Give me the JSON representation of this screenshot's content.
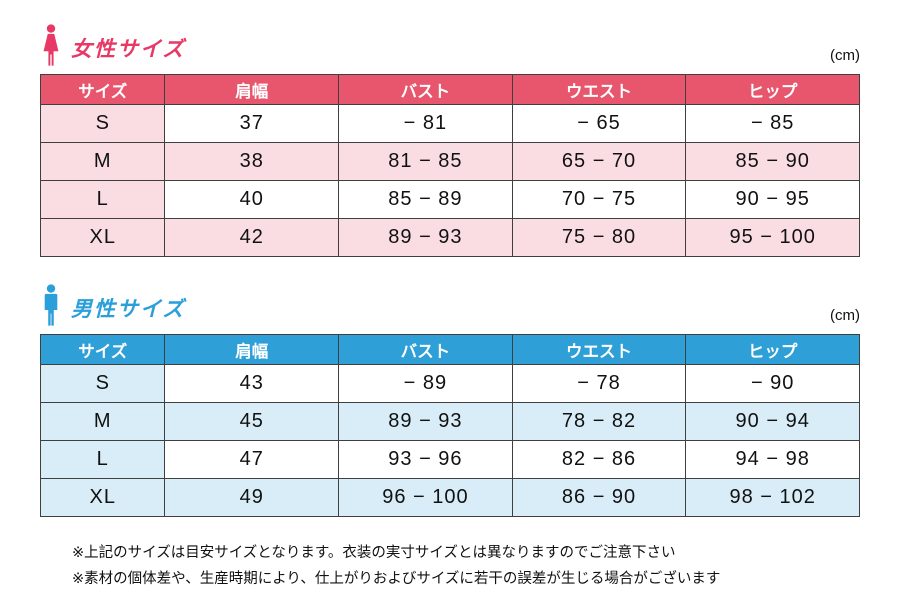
{
  "page": {
    "background": "#ffffff"
  },
  "tables": [
    {
      "id": "women",
      "title": "女性サイズ",
      "unit": "(cm)",
      "icon": "female-icon",
      "title_color": "#e73866",
      "header_bg": "#e8566d",
      "row_tint": "#fadde3",
      "headers": [
        "サイズ",
        "肩幅",
        "バスト",
        "ウエスト",
        "ヒップ"
      ],
      "rows": [
        [
          "S",
          "37",
          "− 81",
          "− 65",
          "− 85"
        ],
        [
          "M",
          "38",
          "81 − 85",
          "65 − 70",
          "85 − 90"
        ],
        [
          "L",
          "40",
          "85 − 89",
          "70 − 75",
          "90 − 95"
        ],
        [
          "XL",
          "42",
          "89 − 93",
          "75 − 80",
          "95 − 100"
        ]
      ]
    },
    {
      "id": "men",
      "title": "男性サイズ",
      "unit": "(cm)",
      "icon": "male-icon",
      "title_color": "#2b9fd9",
      "header_bg": "#2e9fd7",
      "row_tint": "#d9edf8",
      "headers": [
        "サイズ",
        "肩幅",
        "バスト",
        "ウエスト",
        "ヒップ"
      ],
      "rows": [
        [
          "S",
          "43",
          "− 89",
          "− 78",
          "− 90"
        ],
        [
          "M",
          "45",
          "89 − 93",
          "78 − 82",
          "90 − 94"
        ],
        [
          "L",
          "47",
          "93 − 96",
          "82 − 86",
          "94 − 98"
        ],
        [
          "XL",
          "49",
          "96 − 100",
          "86 − 90",
          "98 − 102"
        ]
      ]
    }
  ],
  "notes": [
    "※上記のサイズは目安サイズとなります。衣装の実寸サイズとは異なりますのでご注意下さい",
    "※素材の個体差や、生産時期により、仕上がりおよびサイズに若干の誤差が生じる場合がございます"
  ]
}
